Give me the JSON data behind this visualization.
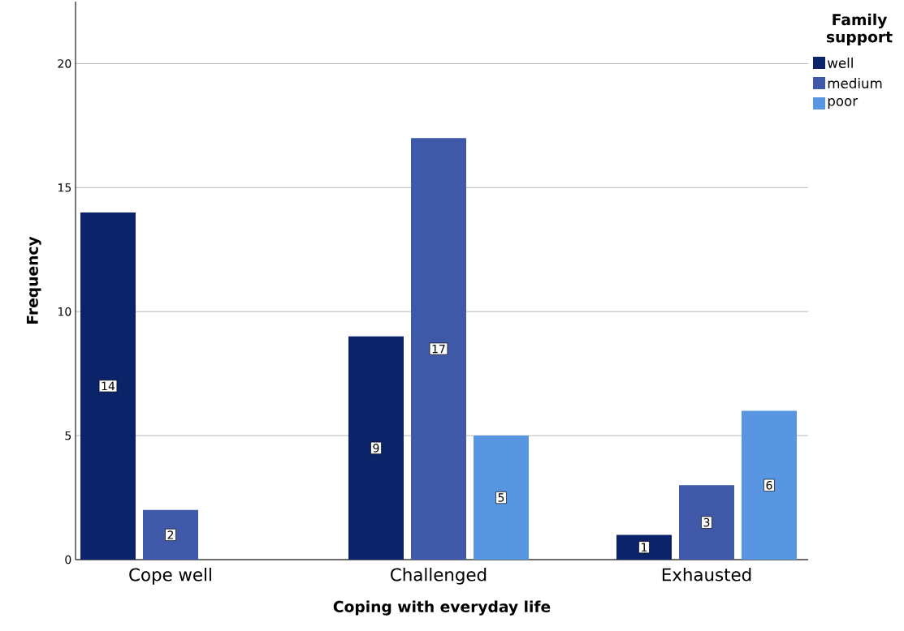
{
  "chart_data": {
    "type": "bar",
    "xlabel": "Coping with everyday life",
    "ylabel": "Frequency",
    "legend_title": "Family support",
    "categories": [
      "Cope well",
      "Challenged",
      "Exhausted"
    ],
    "series": [
      {
        "name": "well",
        "color": "#0b2369",
        "values": [
          14,
          9,
          1
        ]
      },
      {
        "name": "medium",
        "color": "#3f58a8",
        "values": [
          2,
          17,
          3
        ]
      },
      {
        "name": "poor",
        "color": "#5896e2",
        "values": [
          null,
          5,
          6
        ]
      }
    ],
    "ylim": [
      0,
      22.5
    ],
    "yticks": [
      0,
      5,
      10,
      15,
      20
    ],
    "grid": "y",
    "legend": "top right",
    "data_labels": true
  }
}
